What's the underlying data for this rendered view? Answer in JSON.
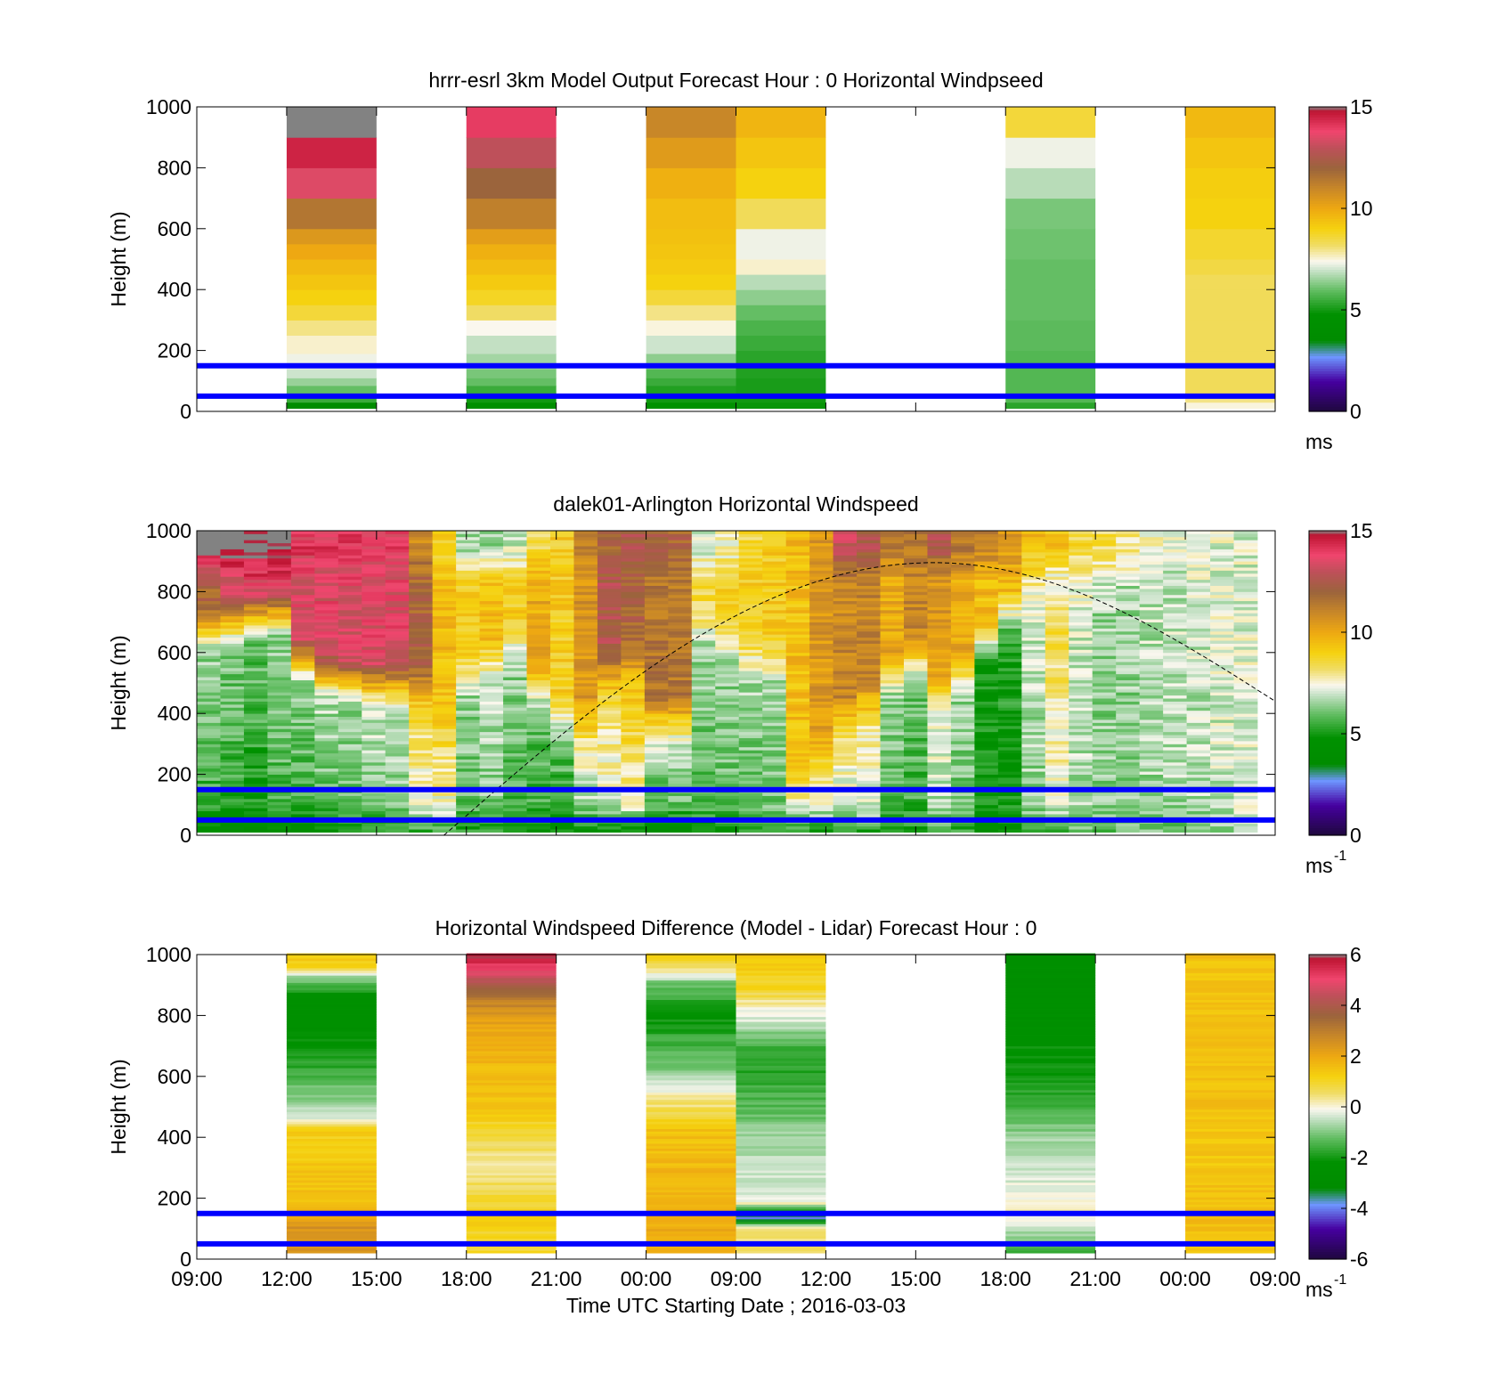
{
  "chart_data": [
    {
      "type": "heatmap",
      "title": "hrrr-esrl 3km Model Output   Forecast Hour : 0 Horizontal Windpseed",
      "ylabel": "Height (m)",
      "ylim": [
        0,
        1000
      ],
      "yticks": [
        "0",
        "200",
        "400",
        "600",
        "800",
        "1000"
      ],
      "colorbar": {
        "ticks": [
          "0",
          "5",
          "10",
          "15"
        ],
        "range": [
          0,
          15
        ],
        "unit": "ms",
        "unit_sup": ""
      },
      "reference_lines": [
        {
          "height": 150,
          "color": "#0000ff"
        },
        {
          "height": 50,
          "color": "#0000ff"
        }
      ],
      "columns": [
        {
          "slot": 1,
          "bin_top_heights": [
            30,
            60,
            85,
            110,
            140,
            190,
            250,
            300,
            350,
            400,
            450,
            500,
            550,
            600,
            700,
            800,
            900,
            1000
          ],
          "values": [
            3.5,
            5.5,
            6.0,
            6.5,
            7.0,
            7.3,
            7.6,
            8.0,
            8.6,
            9.0,
            9.3,
            9.6,
            10.0,
            10.5,
            11.5,
            13.5,
            14.5,
            15.5
          ]
        },
        {
          "slot": 3,
          "bin_top_heights": [
            30,
            60,
            85,
            110,
            140,
            190,
            250,
            300,
            350,
            400,
            450,
            500,
            550,
            600,
            700,
            800,
            900,
            1000
          ],
          "values": [
            4.2,
            5.0,
            5.5,
            6.0,
            6.2,
            6.6,
            6.9,
            7.4,
            8.2,
            8.8,
            9.2,
            9.5,
            9.8,
            10.3,
            11.2,
            12.0,
            13.0,
            14.0
          ]
        },
        {
          "slot": 5,
          "bin_top_heights": [
            30,
            60,
            85,
            110,
            140,
            190,
            250,
            300,
            350,
            400,
            450,
            500,
            550,
            600,
            700,
            800,
            900,
            1000
          ],
          "values": [
            4.8,
            5.0,
            5.2,
            5.5,
            5.8,
            6.4,
            7.0,
            7.5,
            8.0,
            8.6,
            9.0,
            9.2,
            9.3,
            9.4,
            9.5,
            9.8,
            10.4,
            11.0
          ]
        },
        {
          "slot": 6,
          "bin_top_heights": [
            30,
            60,
            110,
            150,
            200,
            250,
            300,
            350,
            400,
            450,
            500,
            600,
            700,
            800,
            900,
            1000
          ],
          "values": [
            4.9,
            5.0,
            5.1,
            5.2,
            5.3,
            5.5,
            5.7,
            6.0,
            6.4,
            6.8,
            7.6,
            7.3,
            8.3,
            9.0,
            9.3,
            9.7
          ]
        },
        {
          "slot": 9,
          "bin_top_heights": [
            30,
            60,
            200,
            300,
            400,
            500,
            600,
            700,
            800,
            900,
            1000
          ],
          "values": [
            5.3,
            5.8,
            5.8,
            5.9,
            6.0,
            6.0,
            6.1,
            6.2,
            6.8,
            7.3,
            8.6
          ]
        },
        {
          "slot": 11,
          "bin_top_heights": [
            30,
            60,
            200,
            300,
            400,
            450,
            500,
            600,
            700,
            800,
            900,
            1000
          ],
          "values": [
            7.5,
            8.0,
            8.3,
            8.3,
            8.3,
            8.3,
            8.5,
            8.7,
            9.0,
            9.1,
            9.3,
            9.6
          ]
        }
      ]
    },
    {
      "type": "heatmap",
      "title": "dalek01-Arlington  Horizontal Windspeed",
      "ylabel": "Height (m)",
      "ylim": [
        0,
        1000
      ],
      "yticks": [
        "0",
        "200",
        "400",
        "600",
        "800",
        "1000"
      ],
      "colorbar": {
        "ticks": [
          "0",
          "5",
          "10",
          "15"
        ],
        "range": [
          0,
          15
        ],
        "unit": "ms",
        "unit_sup": "-1"
      },
      "reference_lines": [
        {
          "height": 150,
          "color": "#0000ff"
        },
        {
          "height": 50,
          "color": "#0000ff"
        }
      ],
      "boundary_layer_curve": {
        "style": "dashed",
        "start_slot": 2.75,
        "end_slot": 12,
        "peak_slot": 8.2,
        "peak_height": 895,
        "end_height": 440
      },
      "profiles": [
        {
          "low": 4,
          "mid": 6.5,
          "upper": 12,
          "top": 15.5,
          "transition": 600
        },
        {
          "low": 4,
          "mid": 6.3,
          "upper": 13,
          "top": 15.5,
          "transition": 620
        },
        {
          "low": 3.8,
          "mid": 6.0,
          "upper": 13.5,
          "top": 15.5,
          "transition": 640
        },
        {
          "low": 4.2,
          "mid": 6.5,
          "upper": 13.5,
          "top": 15.5,
          "transition": 650
        },
        {
          "low": 4,
          "mid": 6.5,
          "upper": 13.5,
          "top": 14,
          "transition": 500
        },
        {
          "low": 4.5,
          "mid": 6.8,
          "upper": 13.5,
          "top": 14,
          "transition": 450
        },
        {
          "low": 5,
          "mid": 6.5,
          "upper": 13.5,
          "top": 14.2,
          "transition": 430
        },
        {
          "low": 5,
          "mid": 7,
          "upper": 13.5,
          "top": 14,
          "transition": 420
        },
        {
          "low": 5.2,
          "mid": 7,
          "upper": 13.5,
          "top": 14,
          "transition": 420
        },
        {
          "low": 5.5,
          "mid": 8.5,
          "upper": 12,
          "top": 11,
          "transition": 400
        },
        {
          "low": 5.5,
          "mid": 8.8,
          "upper": 9.5,
          "top": 9,
          "transition": 350
        },
        {
          "low": 5.2,
          "mid": 6.5,
          "upper": 9,
          "top": 6.5,
          "transition": 450
        },
        {
          "low": 5.2,
          "mid": 7,
          "upper": 9.5,
          "top": 6.5,
          "transition": 500
        },
        {
          "low": 4.5,
          "mid": 6.5,
          "upper": 9,
          "top": 7,
          "transition": 550
        },
        {
          "low": 4.8,
          "mid": 6,
          "upper": 10,
          "top": 8.5,
          "transition": 400
        },
        {
          "low": 4.5,
          "mid": 6,
          "upper": 9,
          "top": 9,
          "transition": 300
        },
        {
          "low": 4.5,
          "mid": 8,
          "upper": 10.5,
          "top": 11,
          "transition": 300
        },
        {
          "low": 4.8,
          "mid": 8.5,
          "upper": 12.5,
          "top": 12,
          "transition": 450
        },
        {
          "low": 4.5,
          "mid": 9.5,
          "upper": 12,
          "top": 12.5,
          "transition": 500
        },
        {
          "low": 4,
          "mid": 7,
          "upper": 11.5,
          "top": 12,
          "transition": 300
        },
        {
          "low": 4.2,
          "mid": 7,
          "upper": 11.5,
          "top": 12,
          "transition": 300
        },
        {
          "low": 4.8,
          "mid": 6.5,
          "upper": 8.5,
          "top": 7,
          "transition": 600
        },
        {
          "low": 5,
          "mid": 6.5,
          "upper": 8.8,
          "top": 7.5,
          "transition": 550
        },
        {
          "low": 5,
          "mid": 6.6,
          "upper": 9,
          "top": 8.5,
          "transition": 500
        },
        {
          "low": 5.2,
          "mid": 6.8,
          "upper": 9.2,
          "top": 9,
          "transition": 500
        },
        {
          "low": 5.3,
          "mid": 8.5,
          "upper": 9.5,
          "top": 9.5,
          "transition": 150
        },
        {
          "low": 5.3,
          "mid": 8.5,
          "upper": 10.5,
          "top": 10.5,
          "transition": 200
        },
        {
          "low": 5.6,
          "mid": 8,
          "upper": 11,
          "top": 13,
          "transition": 300
        },
        {
          "low": 5.5,
          "mid": 8,
          "upper": 11,
          "top": 12.5,
          "transition": 350
        },
        {
          "low": 5,
          "mid": 6.5,
          "upper": 10,
          "top": 11.5,
          "transition": 450
        },
        {
          "low": 5,
          "mid": 6,
          "upper": 11,
          "top": 11.5,
          "transition": 500
        },
        {
          "low": 5.5,
          "mid": 7.5,
          "upper": 10.5,
          "top": 12.5,
          "transition": 400
        },
        {
          "low": 5.5,
          "mid": 6.5,
          "upper": 10,
          "top": 11.5,
          "transition": 450
        },
        {
          "low": 4.5,
          "mid": 5,
          "upper": 9.5,
          "top": 11,
          "transition": 550
        },
        {
          "low": 4.5,
          "mid": 5.2,
          "upper": 9.5,
          "top": 10.5,
          "transition": 650
        },
        {
          "low": 5.5,
          "mid": 7,
          "upper": 8,
          "top": 9.5,
          "transition": 700
        },
        {
          "low": 5.5,
          "mid": 8.5,
          "upper": 7,
          "top": 9.5,
          "transition": 700
        },
        {
          "low": 6,
          "mid": 7,
          "upper": 7.5,
          "top": 8.5,
          "transition": 700
        },
        {
          "low": 6,
          "mid": 6.5,
          "upper": 7,
          "top": 8.5,
          "transition": 700
        },
        {
          "low": 6,
          "mid": 6.5,
          "upper": 6.8,
          "top": 8,
          "transition": 700
        },
        {
          "low": 6.2,
          "mid": 6.8,
          "upper": 6.8,
          "top": 7.5,
          "transition": 700
        },
        {
          "low": 6,
          "mid": 7,
          "upper": 6.8,
          "top": 7.2,
          "transition": 700
        },
        {
          "low": 6.2,
          "mid": 7,
          "upper": 7,
          "top": 7.5,
          "transition": 700
        },
        {
          "low": 6.5,
          "mid": 7.2,
          "upper": 7.1,
          "top": 7.2,
          "transition": 700
        },
        {
          "low": 6.8,
          "mid": 7.2,
          "upper": 7.2,
          "top": 7.1,
          "transition": 700
        }
      ]
    },
    {
      "type": "heatmap",
      "title": "Horizontal Windspeed Difference (Model - Lidar) Forecast Hour : 0",
      "ylabel": "Height (m)",
      "ylim": [
        0,
        1000
      ],
      "yticks": [
        "0",
        "200",
        "400",
        "600",
        "800",
        "1000"
      ],
      "xlabel": "Time UTC  Starting Date ; 2016-03-03",
      "xticks": [
        "09:00",
        "12:00",
        "15:00",
        "18:00",
        "21:00",
        "00:00",
        "09:00",
        "12:00",
        "15:00",
        "18:00",
        "21:00",
        "00:00",
        "09:00"
      ],
      "colorbar": {
        "ticks": [
          "-6",
          "-4",
          "-2",
          "0",
          "2",
          "4",
          "6"
        ],
        "range": [
          -6,
          6
        ],
        "unit": "ms",
        "unit_sup": "-1"
      },
      "reference_lines": [
        {
          "height": 150,
          "color": "#0000ff"
        },
        {
          "height": 50,
          "color": "#0000ff"
        }
      ],
      "columns": [
        {
          "slot": 1,
          "profile_heights": [
            30,
            100,
            200,
            430,
            450,
            480,
            600,
            700,
            850,
            930,
            950,
            1000
          ],
          "profile_values": [
            2.5,
            2.5,
            1.5,
            1.2,
            0.0,
            -0.5,
            -1.5,
            -2.2,
            -2.5,
            -0.5,
            1.0,
            1.5
          ]
        },
        {
          "slot": 3,
          "profile_heights": [
            30,
            150,
            300,
            350,
            500,
            700,
            780,
            850,
            900,
            950,
            1000
          ],
          "profile_values": [
            1.0,
            1.2,
            0.2,
            0.5,
            1.5,
            1.8,
            2.2,
            3.0,
            4.0,
            5.0,
            6.0
          ]
        },
        {
          "slot": 5,
          "profile_heights": [
            30,
            200,
            420,
            520,
            600,
            700,
            800,
            900,
            950,
            1000
          ],
          "profile_values": [
            2.0,
            1.8,
            1.5,
            0.3,
            -0.8,
            -1.5,
            -2.2,
            -1.2,
            0.5,
            1.2
          ]
        },
        {
          "slot": 6,
          "profile_heights": [
            30,
            100,
            130,
            180,
            220,
            300,
            400,
            500,
            600,
            700,
            780,
            820,
            880,
            1000
          ],
          "profile_values": [
            0.5,
            0.3,
            -4.0,
            0.0,
            -0.3,
            -0.5,
            -0.8,
            -1.3,
            -1.8,
            -1.5,
            -0.3,
            0.0,
            1.0,
            1.5
          ]
        },
        {
          "slot": 9,
          "profile_heights": [
            30,
            80,
            160,
            250,
            300,
            400,
            500,
            600,
            700,
            800,
            900,
            1000
          ],
          "profile_values": [
            -1.5,
            -0.8,
            0.3,
            -0.3,
            -0.5,
            -0.8,
            -1.5,
            -2.0,
            -2.2,
            -2.5,
            -2.6,
            -2.6
          ]
        },
        {
          "slot": 11,
          "profile_heights": [
            30,
            150,
            300,
            500,
            700,
            900,
            1000
          ],
          "profile_values": [
            1.5,
            1.6,
            1.4,
            1.5,
            1.6,
            1.5,
            1.5
          ]
        }
      ]
    }
  ]
}
